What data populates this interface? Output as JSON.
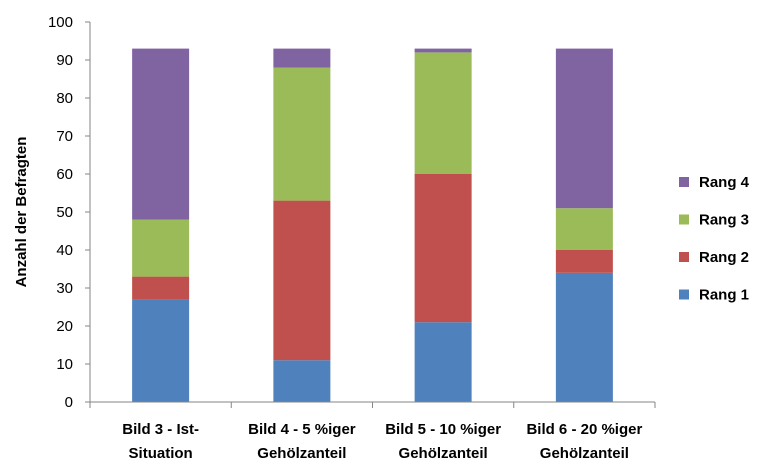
{
  "chart_data": {
    "type": "bar",
    "stacked": true,
    "categories": [
      [
        "Bild 3 - Ist-",
        "Situation"
      ],
      [
        "Bild 4 - 5 %iger",
        "Gehölzanteil"
      ],
      [
        "Bild 5 - 10 %iger",
        "Gehölzanteil"
      ],
      [
        "Bild 6 - 20 %iger",
        "Gehölzanteil"
      ]
    ],
    "series": [
      {
        "name": "Rang 1",
        "color": "#4f81bd",
        "values": [
          27,
          11,
          21,
          34
        ]
      },
      {
        "name": "Rang 2",
        "color": "#c0504d",
        "values": [
          6,
          42,
          39,
          6
        ]
      },
      {
        "name": "Rang 3",
        "color": "#9bbb59",
        "values": [
          15,
          35,
          32,
          11
        ]
      },
      {
        "name": "Rang 4",
        "color": "#8064a2",
        "values": [
          45,
          5,
          1,
          42
        ]
      }
    ],
    "ylabel": "Anzahl der Befragten",
    "ylim": [
      0,
      100
    ],
    "yticks": [
      0,
      10,
      20,
      30,
      40,
      50,
      60,
      70,
      80,
      90,
      100
    ],
    "grid": false,
    "legend": "right"
  }
}
